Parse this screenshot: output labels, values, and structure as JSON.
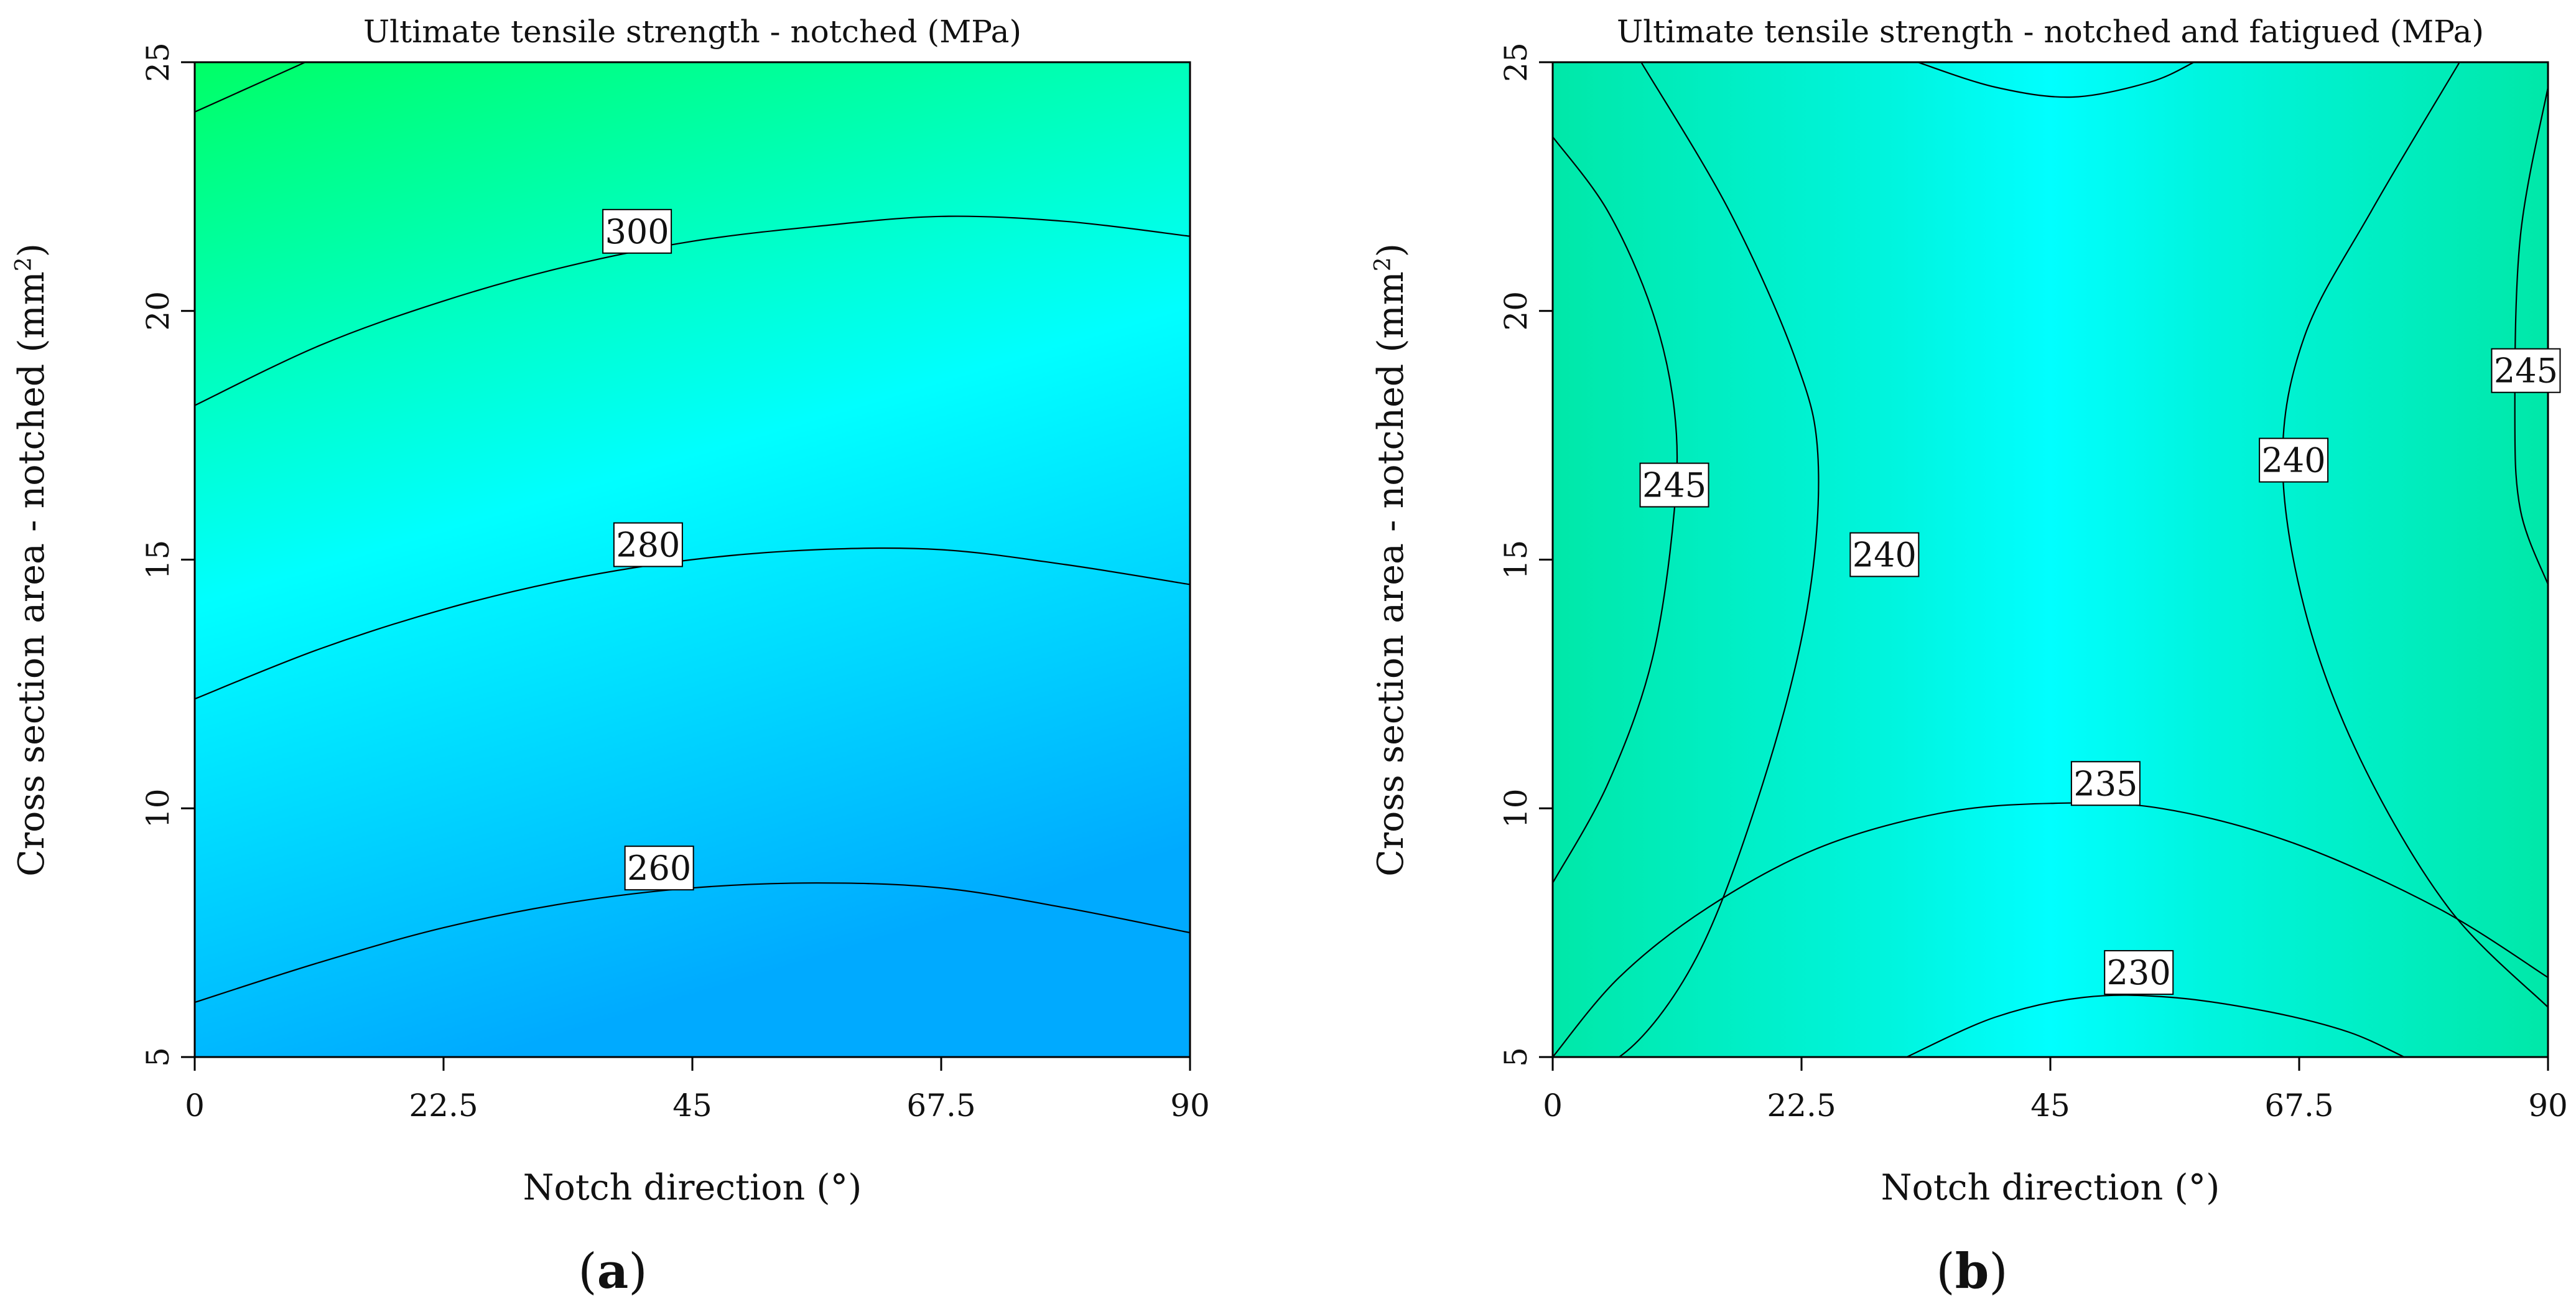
{
  "chart_data": [
    {
      "type": "contour",
      "panel_label": "a",
      "title": "Ultimate tensile strength -  notched (MPa)",
      "xlabel": "Notch direction (°)",
      "ylabel": "Cross section area -  notched (mm²)",
      "xlim": [
        0,
        90
      ],
      "ylim": [
        5,
        25
      ],
      "x_ticks": [
        "0",
        "22.5",
        "45",
        "67.5",
        "90"
      ],
      "y_ticks": [
        "5",
        "10",
        "15",
        "20",
        "25"
      ],
      "color_low": "#00aaff",
      "color_mid": "#00ffff",
      "color_high": "#00ff66",
      "contours": [
        {
          "level": 260,
          "label": "260",
          "label_at": [
            42,
            8.8
          ],
          "points": [
            [
              0,
              6.1
            ],
            [
              11.25,
              6.9
            ],
            [
              22.5,
              7.6
            ],
            [
              33.75,
              8.1
            ],
            [
              45,
              8.4
            ],
            [
              56.25,
              8.5
            ],
            [
              67.5,
              8.4
            ],
            [
              78.75,
              8.0
            ],
            [
              90,
              7.5
            ]
          ]
        },
        {
          "level": 280,
          "label": "280",
          "label_at": [
            41,
            15.3
          ],
          "points": [
            [
              0,
              12.2
            ],
            [
              11.25,
              13.2
            ],
            [
              22.5,
              14.0
            ],
            [
              33.75,
              14.6
            ],
            [
              45,
              15.0
            ],
            [
              56.25,
              15.2
            ],
            [
              67.5,
              15.2
            ],
            [
              78.75,
              14.9
            ],
            [
              90,
              14.5
            ]
          ]
        },
        {
          "level": 300,
          "label": "300",
          "label_at": [
            40,
            21.6
          ],
          "points": [
            [
              0,
              18.1
            ],
            [
              11.25,
              19.3
            ],
            [
              22.5,
              20.2
            ],
            [
              33.75,
              20.9
            ],
            [
              45,
              21.4
            ],
            [
              56.25,
              21.7
            ],
            [
              67.5,
              21.9
            ],
            [
              78.75,
              21.8
            ],
            [
              90,
              21.5
            ]
          ]
        },
        {
          "level": 320,
          "label": "",
          "points": [
            [
              0,
              24.0
            ],
            [
              5,
              24.5
            ],
            [
              10,
              25.0
            ]
          ]
        }
      ]
    },
    {
      "type": "contour",
      "panel_label": "b",
      "title": "Ultimate tensile strength -  notched and fatigued (MPa)",
      "xlabel": "Notch direction (°)",
      "ylabel": "Cross section area -  notched (mm²)",
      "xlim": [
        0,
        90
      ],
      "ylim": [
        5,
        25
      ],
      "x_ticks": [
        "0",
        "22.5",
        "45",
        "67.5",
        "90"
      ],
      "y_ticks": [
        "5",
        "10",
        "15",
        "20",
        "25"
      ],
      "color_low": "#00ffff",
      "color_mid": "#00f5e0",
      "color_high": "#00e8a8",
      "contours": [
        {
          "level": 245,
          "label": "245",
          "label_at": [
            11,
            16.5
          ],
          "points": [
            [
              0,
              23.5
            ],
            [
              5,
              22
            ],
            [
              9,
              20
            ],
            [
              11,
              18
            ],
            [
              11,
              16
            ],
            [
              9,
              13
            ],
            [
              5,
              10.5
            ],
            [
              0,
              8.5
            ]
          ]
        },
        {
          "level": 240,
          "label": "240",
          "label_at": [
            30,
            15.1
          ],
          "points": [
            [
              8,
              25
            ],
            [
              16,
              22
            ],
            [
              22,
              19
            ],
            [
              24,
              17
            ],
            [
              23,
              14
            ],
            [
              19,
              10.5
            ],
            [
              13,
              7
            ],
            [
              6,
              5
            ],
            [
              0,
              5
            ]
          ]
        },
        {
          "level": 240,
          "label": "240",
          "label_at": [
            67,
            17.0
          ],
          "points": [
            [
              82,
              25
            ],
            [
              74,
              22
            ],
            [
              68,
              19.5
            ],
            [
              66,
              17
            ],
            [
              68,
              14
            ],
            [
              73,
              11
            ],
            [
              81,
              8
            ],
            [
              90,
              6
            ]
          ]
        },
        {
          "level": 245,
          "label": "245",
          "label_at": [
            88,
            18.8
          ],
          "points": [
            [
              90,
              24.5
            ],
            [
              87.5,
              21.5
            ],
            [
              87,
              18
            ],
            [
              87.5,
              16
            ],
            [
              90,
              14.5
            ]
          ]
        },
        {
          "level": 235,
          "label": "235",
          "label_at": [
            50,
            10.5
          ],
          "points": [
            [
              0,
              5
            ],
            [
              6,
              6.6
            ],
            [
              14,
              8.0
            ],
            [
              24,
              9.2
            ],
            [
              35,
              9.9
            ],
            [
              45,
              10.1
            ],
            [
              55,
              10.0
            ],
            [
              67,
              9.3
            ],
            [
              80,
              8.0
            ],
            [
              90,
              6.6
            ]
          ]
        },
        {
          "level": 230,
          "label": "230",
          "label_at": [
            53,
            6.7
          ],
          "points": [
            [
              32,
              5
            ],
            [
              40,
              5.8
            ],
            [
              48,
              6.2
            ],
            [
              56,
              6.2
            ],
            [
              65,
              5.9
            ],
            [
              72,
              5.5
            ],
            [
              77,
              5
            ]
          ]
        },
        {
          "level": 235,
          "label": "",
          "points": [
            [
              33,
              25
            ],
            [
              40,
              24.5
            ],
            [
              47,
              24.3
            ],
            [
              54,
              24.6
            ],
            [
              58,
              25
            ]
          ]
        }
      ]
    }
  ]
}
